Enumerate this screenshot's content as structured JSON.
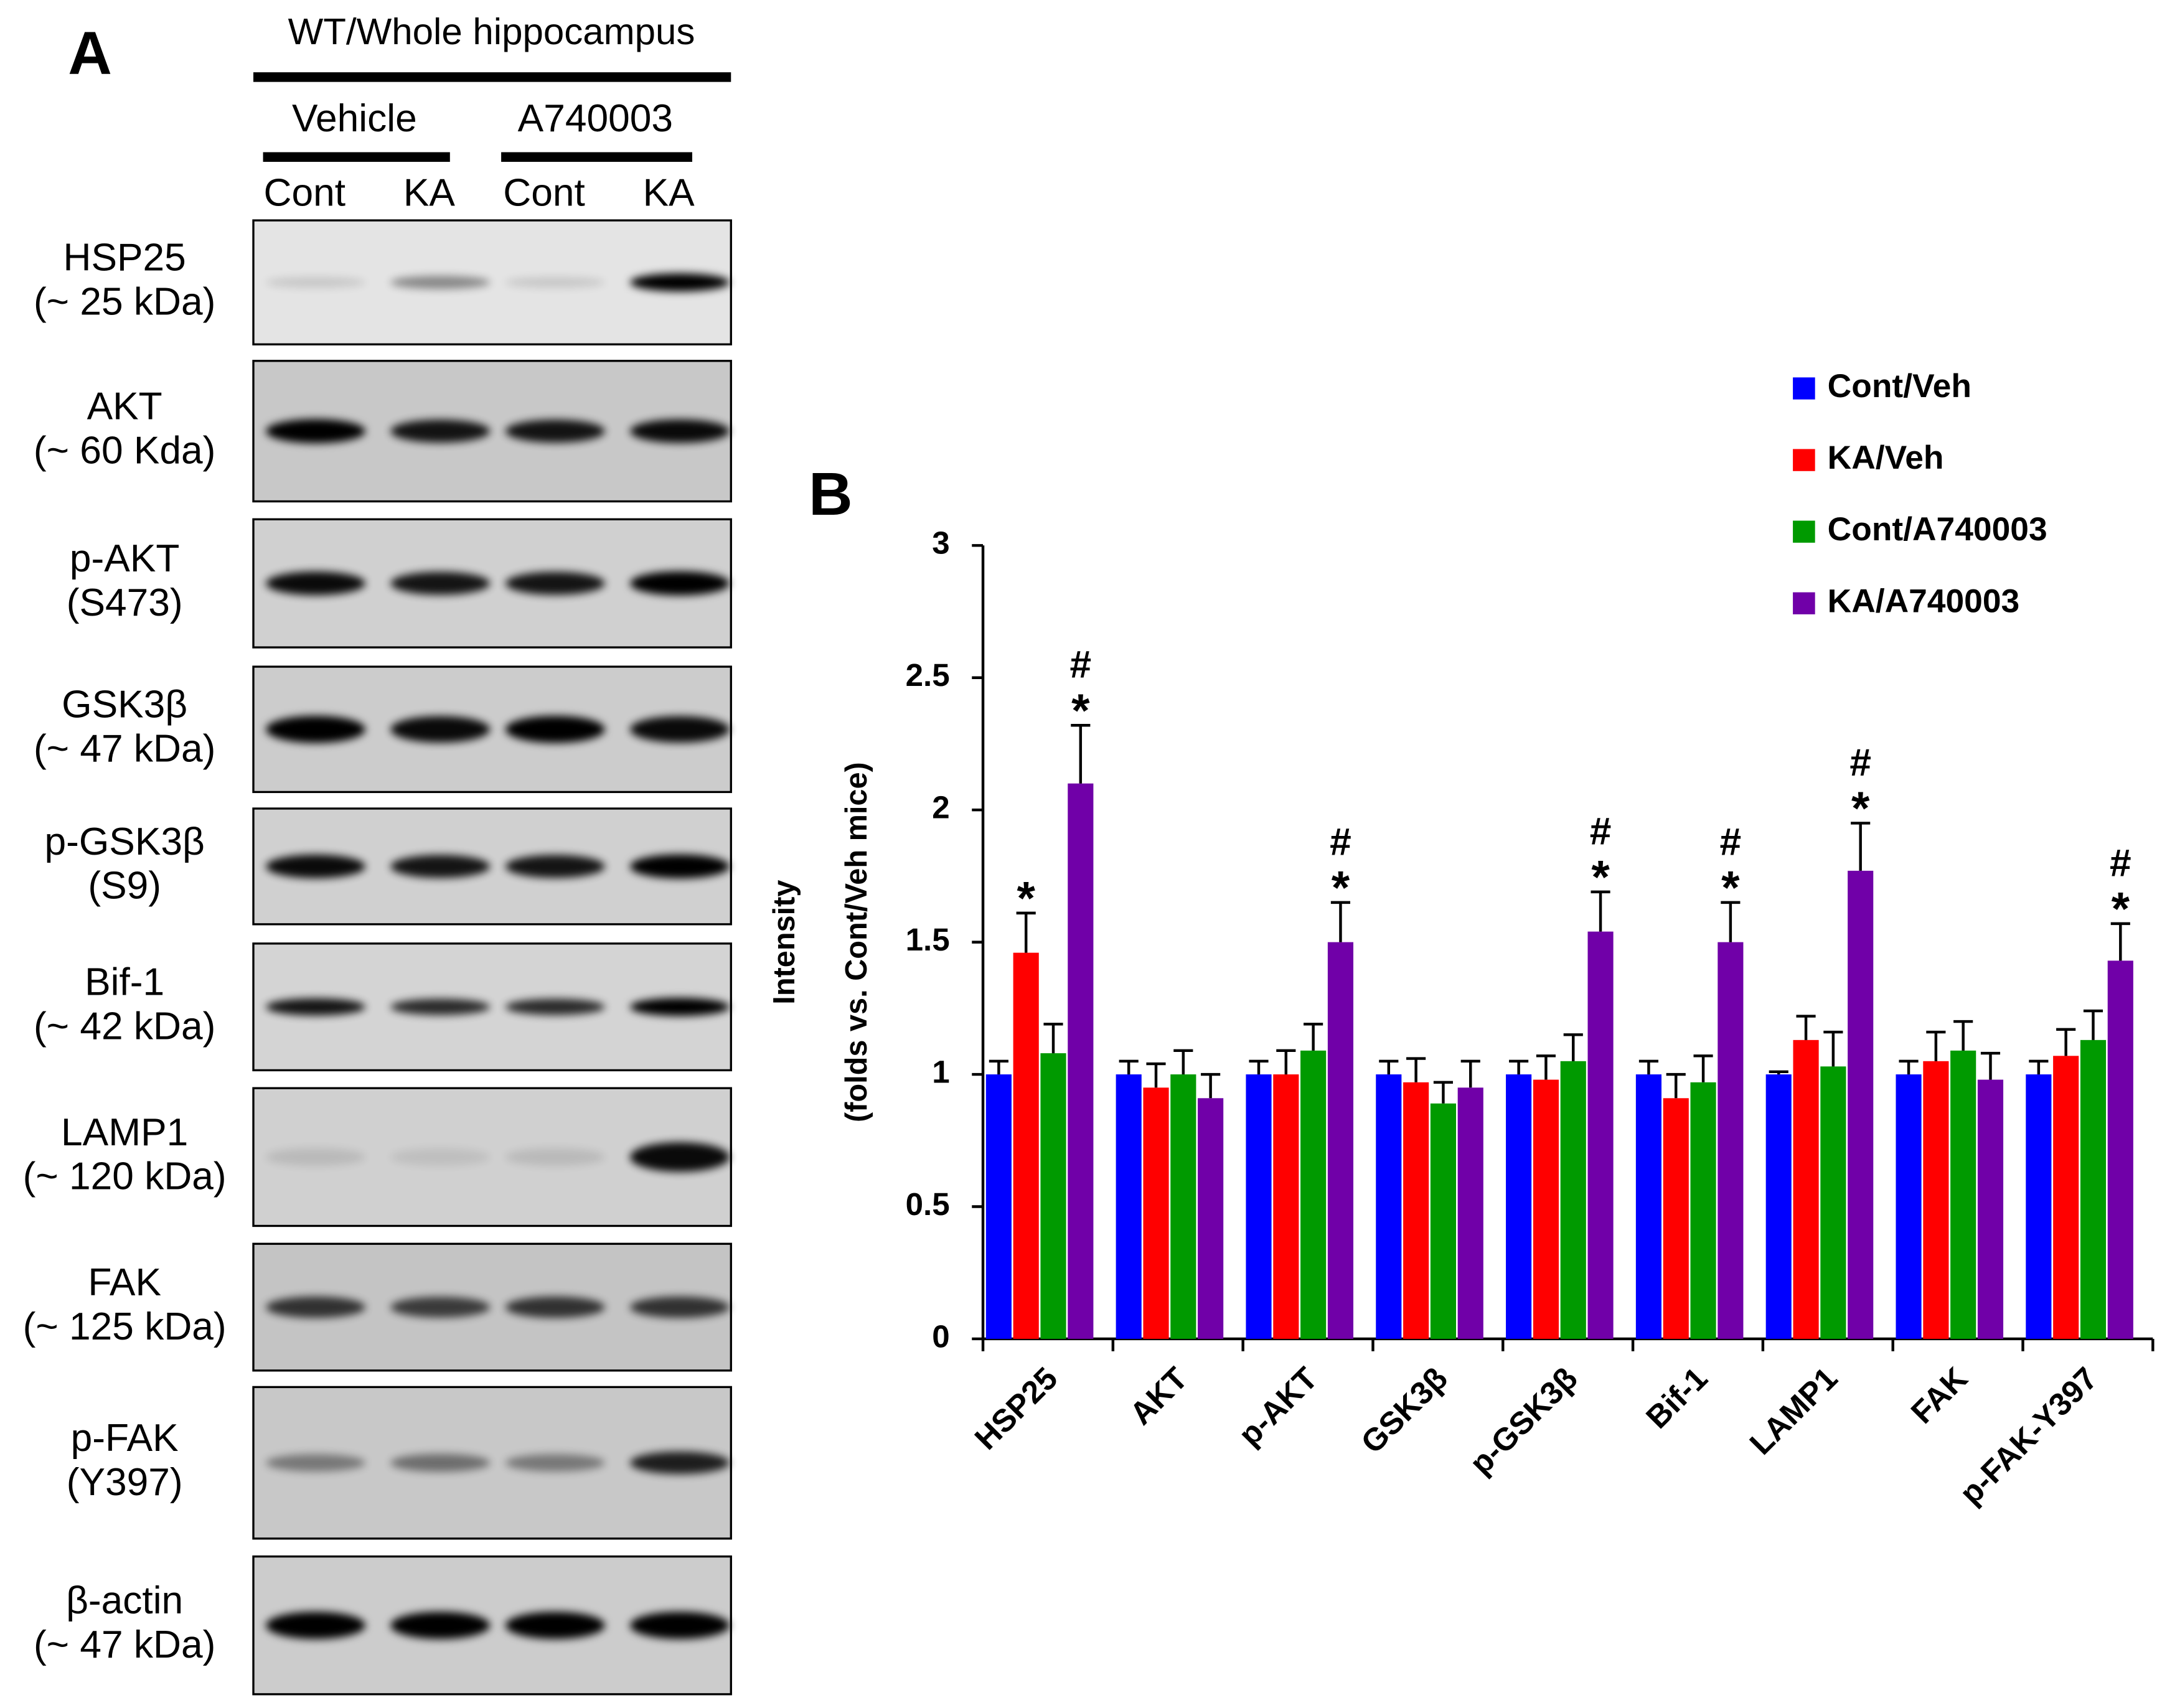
{
  "panel_a": {
    "label": "A",
    "title": "WT/Whole hippocampus",
    "groups": [
      "Vehicle",
      "A740003"
    ],
    "lanes": [
      "Cont",
      "KA",
      "Cont",
      "KA"
    ],
    "rows": [
      [
        "HSP25",
        "(~ 25 kDa)"
      ],
      [
        "AKT",
        "(~ 60 Kda)"
      ],
      [
        "p-AKT",
        "(S473)"
      ],
      [
        "GSK3β",
        "(~ 47 kDa)"
      ],
      [
        "p-GSK3β",
        "(S9)"
      ],
      [
        "Bif-1",
        "(~ 42 kDa)"
      ],
      [
        "LAMP1",
        "(~ 120 kDa)"
      ],
      [
        "FAK",
        "(~ 125 kDa)"
      ],
      [
        "p-FAK",
        "(Y397)"
      ],
      [
        "β-actin",
        "(~ 47 kDa)"
      ]
    ]
  },
  "chart_data": {
    "type": "bar",
    "panel_label": "B",
    "y_label": [
      "Intensity",
      "(folds vs. Cont/Veh mice)"
    ],
    "categories": [
      "HSP25",
      "AKT",
      "p-AKT",
      "GSK3β",
      "p-GSK3β",
      "Bif-1",
      "LAMP1",
      "FAK",
      "p-FAK-Y397"
    ],
    "ylim": [
      0,
      3
    ],
    "yticks": [
      0,
      0.5,
      1,
      1.5,
      2,
      2.5,
      3
    ],
    "legend": "top-right",
    "series": [
      {
        "name": "Cont/Veh",
        "color": "#0000ff",
        "values": [
          1,
          1,
          1,
          1,
          1,
          1,
          1,
          1,
          1
        ],
        "errors": [
          0.05,
          0.05,
          0.05,
          0.05,
          0.05,
          0.05,
          0.01,
          0.05,
          0.05
        ]
      },
      {
        "name": "KA/Veh",
        "color": "#ff0000",
        "values": [
          1.46,
          0.95,
          1.0,
          0.97,
          0.98,
          0.91,
          1.13,
          1.05,
          1.07
        ],
        "errors": [
          0.15,
          0.09,
          0.09,
          0.09,
          0.09,
          0.09,
          0.09,
          0.11,
          0.1
        ],
        "annotations": [
          [
            "*"
          ],
          null,
          null,
          null,
          null,
          null,
          null,
          null,
          null
        ]
      },
      {
        "name": "Cont/A740003",
        "color": "#009a00",
        "values": [
          1.08,
          1.0,
          1.09,
          0.89,
          1.05,
          0.97,
          1.03,
          1.09,
          1.13
        ],
        "errors": [
          0.11,
          0.09,
          0.1,
          0.08,
          0.1,
          0.1,
          0.13,
          0.11,
          0.11
        ]
      },
      {
        "name": "KA/A740003",
        "color": "#7000a8",
        "values": [
          2.1,
          0.91,
          1.5,
          0.95,
          1.54,
          1.5,
          1.77,
          0.98,
          1.43
        ],
        "errors": [
          0.22,
          0.09,
          0.15,
          0.1,
          0.15,
          0.15,
          0.18,
          0.1,
          0.14
        ],
        "annotations": [
          [
            "#",
            "*"
          ],
          null,
          [
            "#",
            "*"
          ],
          null,
          [
            "#",
            "*"
          ],
          [
            "#",
            "*"
          ],
          [
            "#",
            "*"
          ],
          null,
          [
            "#",
            "*"
          ]
        ]
      }
    ]
  }
}
